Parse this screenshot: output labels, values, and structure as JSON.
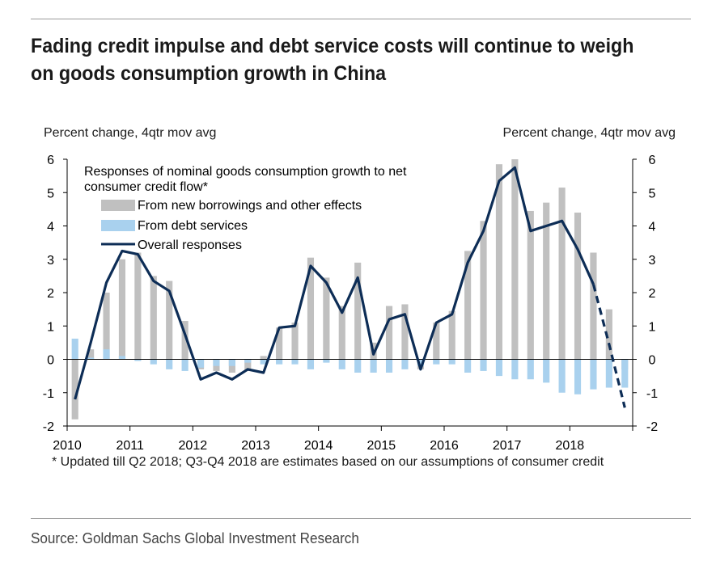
{
  "title": "Fading credit impulse and debt service costs will continue to weigh on goods consumption growth in China",
  "left_axis_unit": "Percent change, 4qtr mov avg",
  "right_axis_unit": "Percent change, 4qtr mov avg",
  "footnote": "* Updated till Q2 2018; Q3-Q4 2018 are estimates based on our assumptions of consumer credit",
  "source": "Source: Goldman Sachs Global Investment Research",
  "colors": {
    "borrowings": "#c0c0c0",
    "debt_services": "#a9d1ee",
    "overall": "#0d2d56"
  },
  "chart_data": {
    "type": "bar",
    "legend_title": "Responses of nominal goods consumption growth to net consumer credit flow*",
    "legend_placement": "top-left",
    "grid": false,
    "ylim": [
      -2,
      6
    ],
    "yticks": [
      -2,
      -1,
      0,
      1,
      2,
      3,
      4,
      5,
      6
    ],
    "x_tick_labels": [
      "2010",
      "2011",
      "2012",
      "2013",
      "2014",
      "2015",
      "2016",
      "2017",
      "2018"
    ],
    "categories": [
      "2010Q1",
      "2010Q2",
      "2010Q3",
      "2010Q4",
      "2011Q1",
      "2011Q2",
      "2011Q3",
      "2011Q4",
      "2012Q1",
      "2012Q2",
      "2012Q3",
      "2012Q4",
      "2013Q1",
      "2013Q2",
      "2013Q3",
      "2013Q4",
      "2014Q1",
      "2014Q2",
      "2014Q3",
      "2014Q4",
      "2015Q1",
      "2015Q2",
      "2015Q3",
      "2015Q4",
      "2016Q1",
      "2016Q2",
      "2016Q3",
      "2016Q4",
      "2017Q1",
      "2017Q2",
      "2017Q3",
      "2017Q4",
      "2018Q1",
      "2018Q2",
      "2018Q3",
      "2018Q4"
    ],
    "series": [
      {
        "name": "From new borrowings and other effects",
        "kind": "bar",
        "values": [
          -1.8,
          0.3,
          2.0,
          3.0,
          3.2,
          2.5,
          2.35,
          1.15,
          -0.3,
          -0.35,
          -0.4,
          -0.35,
          0.1,
          0.95,
          1.1,
          3.05,
          2.45,
          1.6,
          2.9,
          0.5,
          1.6,
          1.65,
          -0.3,
          1.1,
          1.45,
          3.25,
          4.15,
          5.85,
          6.0,
          4.45,
          4.7,
          5.15,
          4.4,
          3.2,
          1.5,
          -0.3
        ]
      },
      {
        "name": "From debt services",
        "kind": "bar",
        "values": [
          0.62,
          0.05,
          0.3,
          0.1,
          -0.05,
          -0.15,
          -0.3,
          -0.35,
          -0.25,
          -0.2,
          -0.2,
          -0.1,
          -0.15,
          -0.15,
          -0.15,
          -0.3,
          -0.1,
          -0.3,
          -0.4,
          -0.4,
          -0.4,
          -0.3,
          -0.2,
          -0.15,
          -0.15,
          -0.4,
          -0.35,
          -0.5,
          -0.6,
          -0.6,
          -0.7,
          -1.0,
          -1.05,
          -0.9,
          -0.85,
          -0.85
        ]
      },
      {
        "name": "Overall responses",
        "kind": "line",
        "values": [
          -1.2,
          0.5,
          2.3,
          3.25,
          3.15,
          2.35,
          2.05,
          0.75,
          -0.6,
          -0.4,
          -0.6,
          -0.3,
          -0.4,
          0.95,
          1.0,
          2.8,
          2.3,
          1.4,
          2.45,
          0.15,
          1.2,
          1.35,
          -0.3,
          1.1,
          1.35,
          2.9,
          3.85,
          5.35,
          5.75,
          3.85,
          4.0,
          4.15,
          3.3,
          2.25,
          0.45,
          -1.45
        ],
        "estimated_from_index": 33
      }
    ]
  }
}
